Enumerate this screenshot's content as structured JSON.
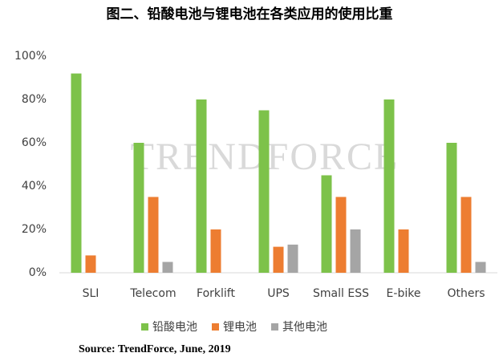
{
  "chart_data": {
    "type": "bar",
    "title": "图二、铅酸电池与锂电池在各类应用的使用比重",
    "watermark": "TRENDFORCE",
    "source": "Source: TrendForce, June, 2019",
    "categories": [
      "SLI",
      "Telecom",
      "Forklift",
      "UPS",
      "Small ESS",
      "E-bike",
      "Others"
    ],
    "series": [
      {
        "name": "铅酸电池",
        "color": "#7dc24a",
        "values": [
          92,
          60,
          80,
          75,
          45,
          80,
          60
        ]
      },
      {
        "name": "锂电池",
        "color": "#ed7d31",
        "values": [
          8,
          35,
          20,
          12,
          35,
          20,
          35
        ]
      },
      {
        "name": "其他电池",
        "color": "#a5a5a5",
        "values": [
          0,
          5,
          0,
          13,
          20,
          0,
          5
        ]
      }
    ],
    "ylim": [
      0,
      100
    ],
    "yticks": [
      {
        "value": 0,
        "label": "0%"
      },
      {
        "value": 20,
        "label": "20%"
      },
      {
        "value": 40,
        "label": "40%"
      },
      {
        "value": 60,
        "label": "60%"
      },
      {
        "value": 80,
        "label": "80%"
      },
      {
        "value": 100,
        "label": "100%"
      }
    ],
    "grid": false
  }
}
